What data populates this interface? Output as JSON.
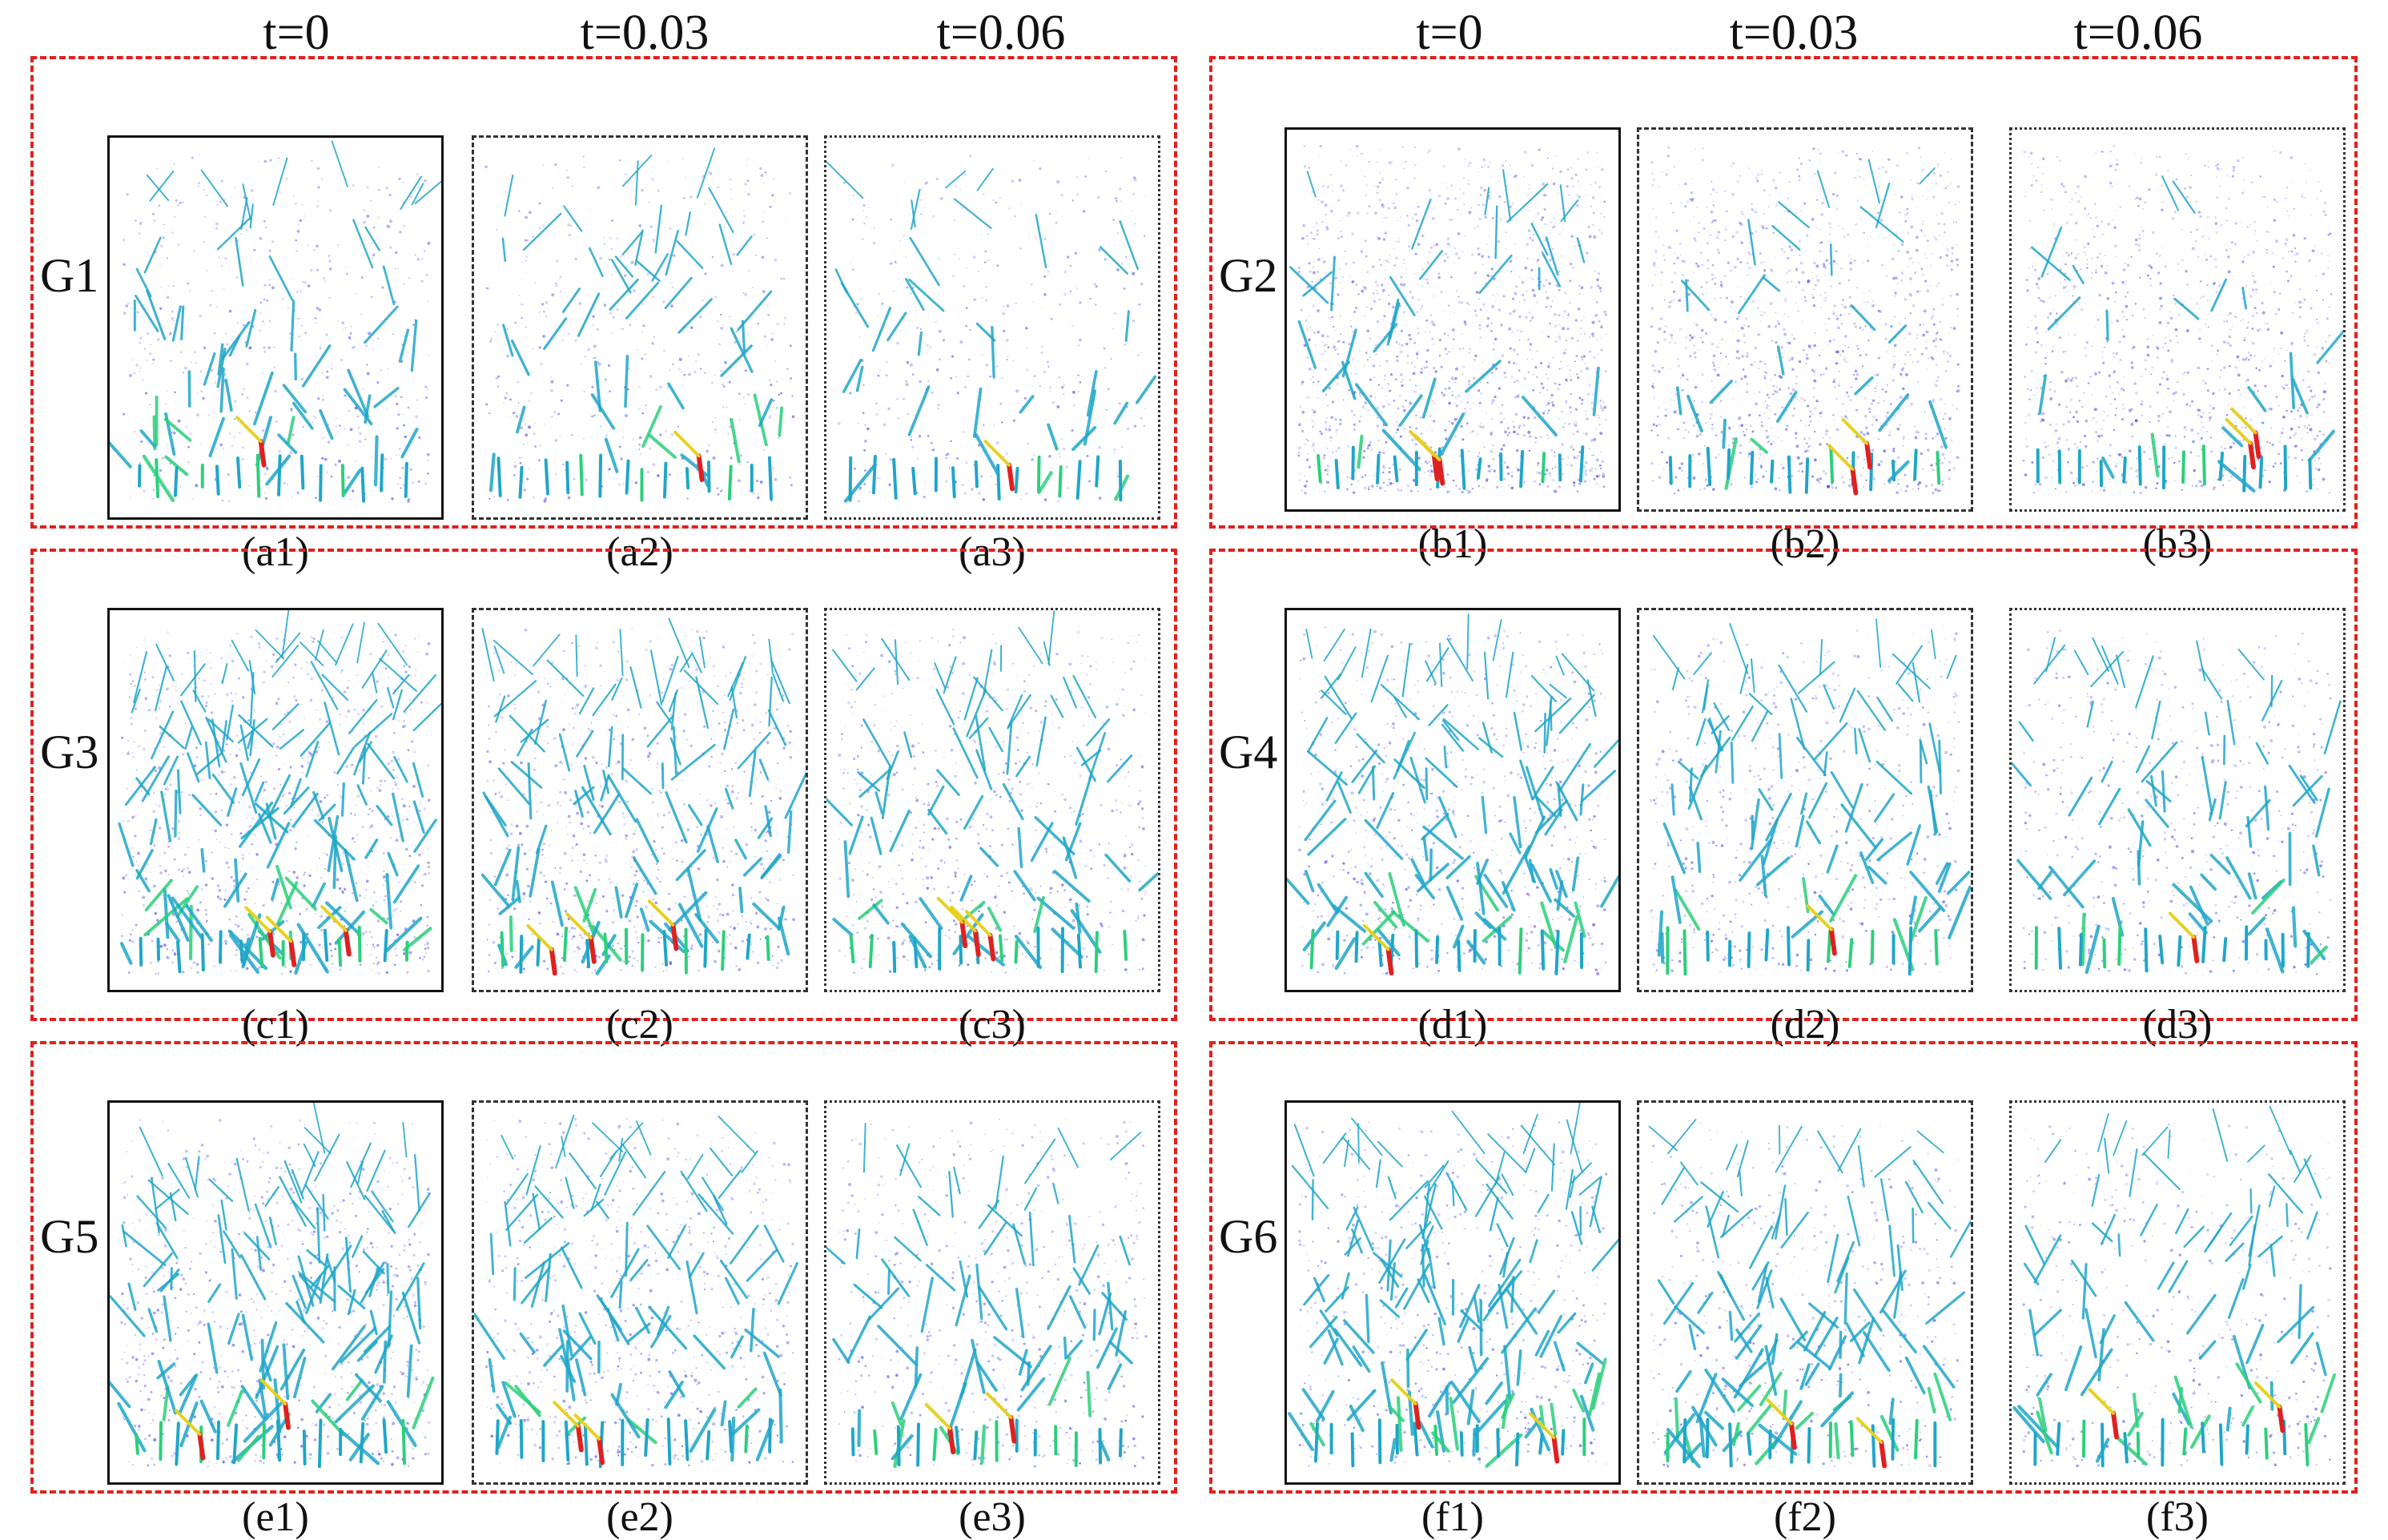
{
  "time_labels_left": [
    "t=0",
    "t=0.03",
    "t=0.06"
  ],
  "time_labels_right": [
    "t=0",
    "t=0.03",
    "t=0.06"
  ],
  "colors": {
    "group_border": "#e0201e",
    "particles": "#2a2ae0",
    "network_low": "#1fa6c8",
    "network_mid": "#2bd07a",
    "network_high": "#e8d020",
    "network_peak": "#e02020"
  },
  "groups": [
    {
      "name": "G1",
      "panels": [
        "(a1)",
        "(a2)",
        "(a3)"
      ],
      "density": 0.35,
      "links": 0.45,
      "hot": 1
    },
    {
      "name": "G2",
      "panels": [
        "(b1)",
        "(b2)",
        "(b3)"
      ],
      "density": 1.0,
      "links": 0.25,
      "hot": 2
    },
    {
      "name": "G3",
      "panels": [
        "(c1)",
        "(c2)",
        "(c3)"
      ],
      "density": 0.6,
      "links": 1.0,
      "hot": 3
    },
    {
      "name": "G4",
      "panels": [
        "(d1)",
        "(d2)",
        "(d3)"
      ],
      "density": 0.5,
      "links": 0.85,
      "hot": 1
    },
    {
      "name": "G5",
      "panels": [
        "(e1)",
        "(e2)",
        "(e3)"
      ],
      "density": 0.55,
      "links": 0.9,
      "hot": 2
    },
    {
      "name": "G6",
      "panels": [
        "(f1)",
        "(f2)",
        "(f3)"
      ],
      "density": 0.4,
      "links": 1.0,
      "hot": 2
    }
  ]
}
